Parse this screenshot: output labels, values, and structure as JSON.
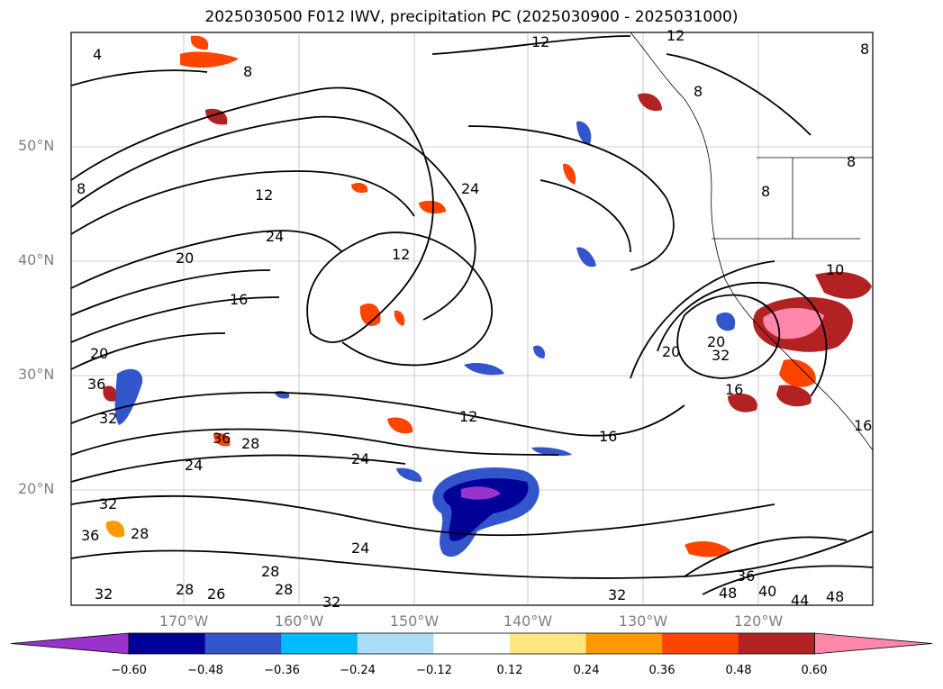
{
  "title": "2025030500 F012 IWV, precipitation PC (2025030900 - 2025031000)",
  "map": {
    "lat_labels": [
      "50°N",
      "40°N",
      "30°N",
      "20°N"
    ],
    "lon_labels": [
      "170°W",
      "160°W",
      "150°W",
      "140°W",
      "130°W",
      "120°W"
    ],
    "contour_labels": [
      "4",
      "8",
      "12",
      "8",
      "8",
      "8",
      "12",
      "24",
      "20",
      "24",
      "16",
      "12",
      "20",
      "36",
      "16",
      "32",
      "28",
      "24",
      "12",
      "16",
      "32",
      "20",
      "24",
      "32",
      "28",
      "36",
      "28",
      "24",
      "32",
      "36",
      "40",
      "44",
      "48",
      "48",
      "32",
      "36",
      "28",
      "28",
      "32",
      "26",
      "12",
      "10",
      "20",
      "16",
      "8",
      "8"
    ]
  },
  "colorbar": {
    "ticks": [
      "−0.60",
      "−0.48",
      "−0.36",
      "−0.24",
      "−0.12",
      "0.12",
      "0.24",
      "0.36",
      "0.48",
      "0.60"
    ],
    "colors": [
      "#9933cc",
      "#000099",
      "#3355cc",
      "#00bbff",
      "#aaddf7",
      "#ffffff",
      "#ffe680",
      "#ff9900",
      "#ff4400",
      "#b22222",
      "#ff88aa"
    ]
  }
}
